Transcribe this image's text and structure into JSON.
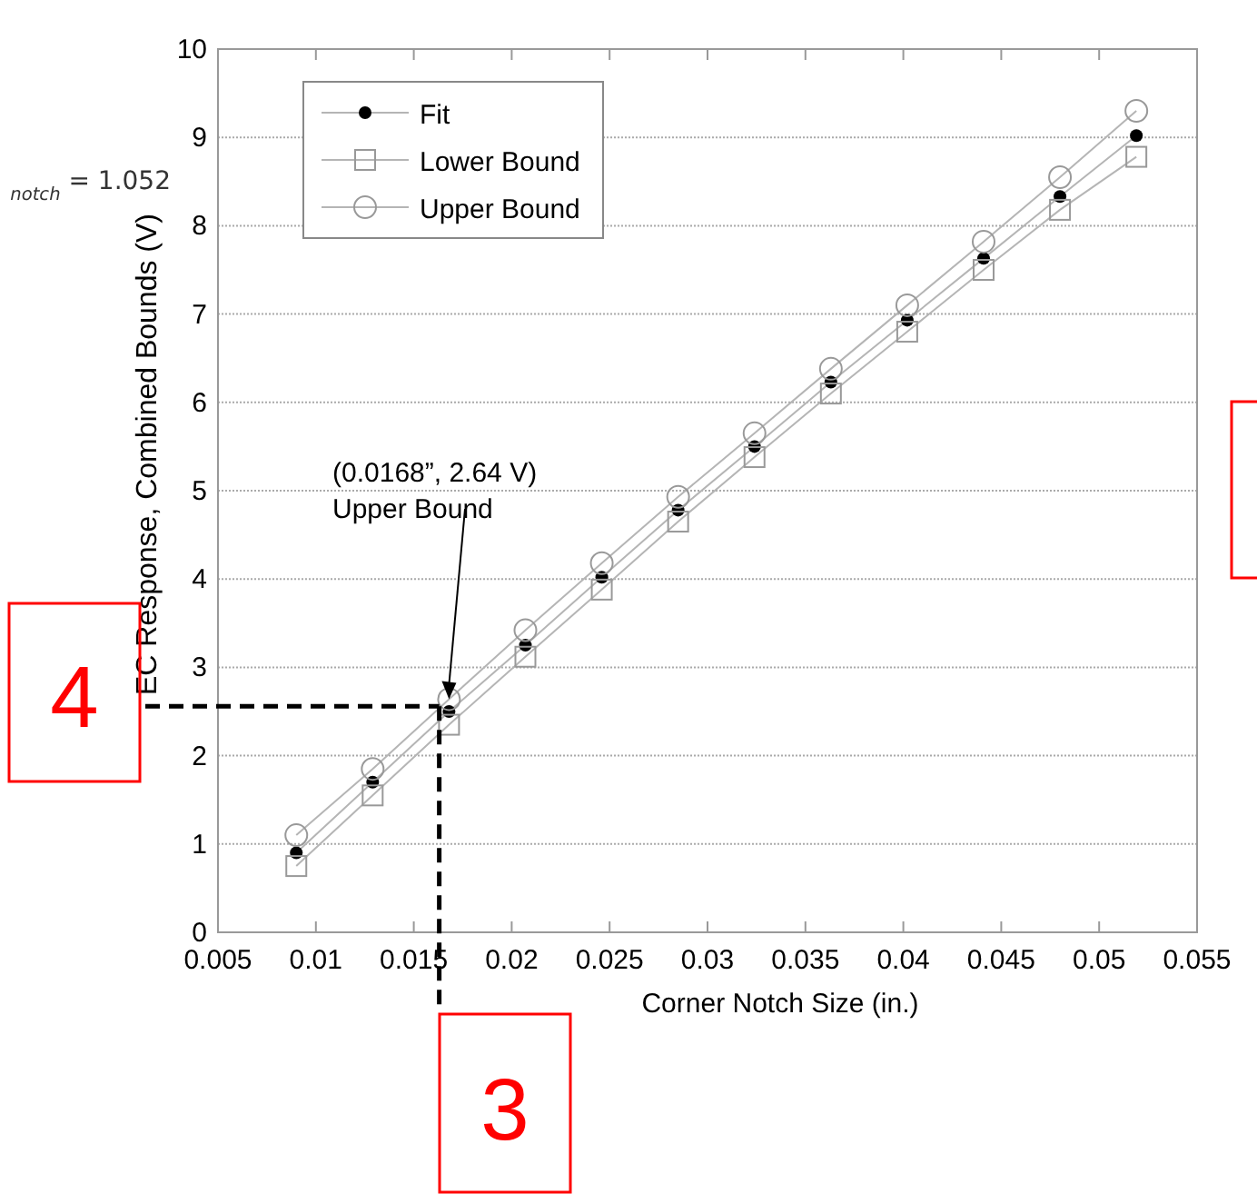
{
  "chart_data": {
    "type": "line",
    "xlabel": "Corner Notch Size (in.)",
    "ylabel": "EC Response, Combined Bounds (V)",
    "x": [
      0.009,
      0.0129,
      0.0168,
      0.0207,
      0.0246,
      0.0285,
      0.0324,
      0.0363,
      0.0402,
      0.0441,
      0.048,
      0.0519
    ],
    "series": [
      {
        "name": "Fit",
        "color": "#000000",
        "marker": "circle",
        "values": [
          0.9,
          1.7,
          2.5,
          3.25,
          4.02,
          4.78,
          5.5,
          6.23,
          6.93,
          7.63,
          8.33,
          9.02
        ]
      },
      {
        "name": "Lower Bound",
        "color": "#999999",
        "marker": "square",
        "values": [
          0.75,
          1.55,
          2.35,
          3.12,
          3.88,
          4.65,
          5.38,
          6.1,
          6.8,
          7.5,
          8.18,
          8.78
        ]
      },
      {
        "name": "Upper Bound",
        "color": "#999999",
        "marker": "circle",
        "values": [
          1.1,
          1.85,
          2.64,
          3.42,
          4.18,
          4.93,
          5.65,
          6.38,
          7.1,
          7.82,
          8.55,
          9.3
        ]
      }
    ],
    "xlim": [
      0.005,
      0.055
    ],
    "xticks": [
      0.005,
      0.01,
      0.015,
      0.02,
      0.025,
      0.03,
      0.035,
      0.04,
      0.045,
      0.05,
      0.055
    ],
    "ylim": [
      0,
      10
    ],
    "yticks": [
      0,
      1,
      2,
      3,
      4,
      5,
      6,
      7,
      8,
      9,
      10
    ],
    "grid": "y",
    "legend": "top left",
    "line_style": "solid",
    "ref_lines": [
      {
        "axis": "y",
        "value": 2.56,
        "color": "#000000",
        "line_style": "dashed"
      },
      {
        "axis": "x",
        "value": 0.0163,
        "color": "#000000",
        "line_style": "dashed"
      }
    ],
    "annotations": [
      {
        "text": "(0.0168”, 2.64 V)\nUpper Bound",
        "x": 0.0168,
        "y": 2.64
      },
      "4",
      "3",
      "$_{notch}$ = 1.052"
    ]
  }
}
